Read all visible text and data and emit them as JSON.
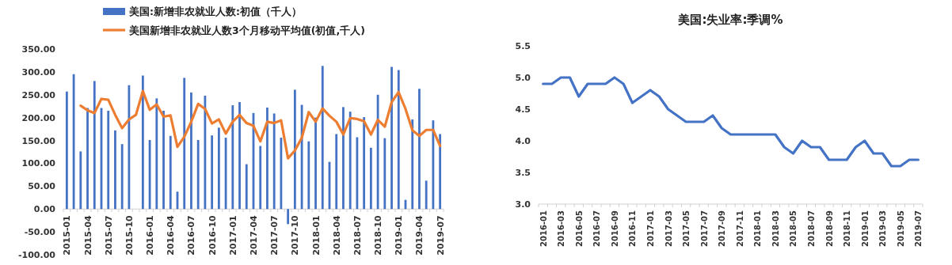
{
  "chart_data": [
    {
      "type": "bar",
      "legend": "top",
      "categories": [
        "2015-01",
        null,
        null,
        "2015-04",
        null,
        null,
        "2015-07",
        null,
        null,
        "2015-10",
        null,
        null,
        "2016-01",
        null,
        null,
        "2016-04",
        null,
        null,
        "2016-07",
        null,
        null,
        "2016-10",
        null,
        null,
        "2017-01",
        null,
        null,
        "2017-04",
        null,
        null,
        "2017-07",
        null,
        null,
        "2017-10",
        null,
        null,
        "2018-01",
        null,
        null,
        "2018-04",
        null,
        null,
        "2018-07",
        null,
        null,
        "2018-10",
        null,
        null,
        "2019-01",
        null,
        null,
        "2019-04",
        null,
        null,
        "2019-07"
      ],
      "series": [
        {
          "name": "美国:新增非农就业人数:初值（千人）",
          "color": "#4472c4",
          "values": [
            257,
            295,
            126,
            221,
            280,
            221,
            215,
            172,
            142,
            271,
            null,
            292,
            151,
            242,
            215,
            160,
            38,
            287,
            255,
            151,
            248,
            161,
            178,
            156,
            227,
            234,
            98,
            210,
            138,
            222,
            209,
            156,
            -33,
            261,
            228,
            148,
            200,
            313,
            103,
            164,
            223,
            213,
            157,
            201,
            134,
            250,
            155,
            311,
            304,
            20,
            196,
            263,
            62,
            194,
            164
          ]
        },
        {
          "name": "美国新增非农就业人数3个月移动平均值(初值,千人)",
          "type": "line",
          "color": "#ed7d31",
          "values": [
            null,
            null,
            226,
            216,
            210,
            241,
            239,
            206,
            177,
            196,
            206,
            258,
            217,
            229,
            202,
            205,
            136,
            158,
            191,
            230,
            219,
            187,
            196,
            165,
            191,
            206,
            188,
            182,
            148,
            191,
            188,
            194,
            111,
            128,
            156,
            212,
            191,
            220,
            204,
            191,
            163,
            199,
            197,
            192,
            163,
            195,
            180,
            234,
            256,
            219,
            172,
            160,
            173,
            173,
            138
          ]
        }
      ],
      "ylim": [
        -100,
        350
      ],
      "yticks": [
        {
          "value": -100,
          "label": "-100.00"
        },
        {
          "value": -50,
          "label": "-50.00"
        },
        {
          "value": 0,
          "label": "0.00"
        },
        {
          "value": 50,
          "label": "50.00"
        },
        {
          "value": 100,
          "label": "100.00"
        },
        {
          "value": 150,
          "label": "150.00"
        },
        {
          "value": 200,
          "label": "200.00"
        },
        {
          "value": 250,
          "label": "250.00"
        },
        {
          "value": 300,
          "label": "300.00"
        },
        {
          "value": 350,
          "label": "350.00"
        }
      ]
    },
    {
      "type": "line",
      "title": "美国:失业率:季调%",
      "categories": [
        "2016-01",
        null,
        "2016-03",
        null,
        "2016-05",
        null,
        "2016-07",
        null,
        "2016-09",
        null,
        "2016-11",
        null,
        "2017-01",
        null,
        "2017-03",
        null,
        "2017-05",
        null,
        "2017-07",
        null,
        "2017-09",
        null,
        "2017-11",
        null,
        "2018-01",
        null,
        "2018-03",
        null,
        "2018-05",
        null,
        "2018-07",
        null,
        "2018-09",
        null,
        "2018-11",
        null,
        "2019-01",
        null,
        "2019-03",
        null,
        "2019-05",
        null,
        "2019-07"
      ],
      "series": [
        {
          "color": "#4472c4",
          "values": [
            4.9,
            4.9,
            5.0,
            5.0,
            4.7,
            4.9,
            4.9,
            4.9,
            5.0,
            4.9,
            4.6,
            4.7,
            4.8,
            4.7,
            4.5,
            4.4,
            4.3,
            4.3,
            4.3,
            4.4,
            4.2,
            4.1,
            4.1,
            4.1,
            4.1,
            4.1,
            4.1,
            3.9,
            3.8,
            4.0,
            3.9,
            3.9,
            3.7,
            3.7,
            3.7,
            3.9,
            4.0,
            3.8,
            3.8,
            3.6,
            3.6,
            3.7,
            3.7
          ]
        }
      ],
      "ylim": [
        3.0,
        5.5
      ],
      "yticks": [
        {
          "value": 3.0,
          "label": "3.0"
        },
        {
          "value": 3.5,
          "label": "3.5"
        },
        {
          "value": 4.0,
          "label": "4.0"
        },
        {
          "value": 4.5,
          "label": "4.5"
        },
        {
          "value": 5.0,
          "label": "5.0"
        },
        {
          "value": 5.5,
          "label": "5.5"
        }
      ]
    }
  ]
}
